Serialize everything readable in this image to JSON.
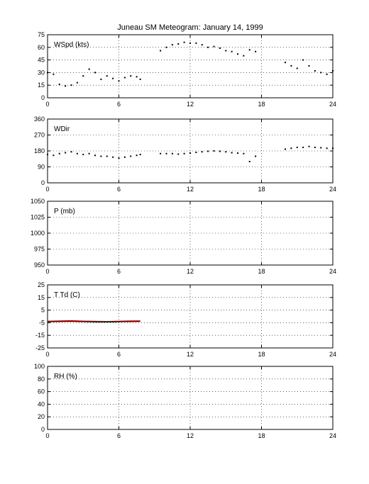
{
  "title": "Juneau SM Meteogram:   January 14, 1999",
  "chart_data": [
    {
      "type": "scatter",
      "label": "WSpd (kts)",
      "xlim": [
        0,
        24
      ],
      "ylim": [
        0,
        75
      ],
      "xticks": [
        0,
        6,
        12,
        18,
        24
      ],
      "yticks": [
        0,
        15,
        30,
        45,
        60,
        75
      ],
      "grid": true,
      "series": [
        {
          "color": "#000000",
          "x": [
            0.0,
            0.5,
            1.0,
            1.5,
            2.0,
            2.5,
            3.0,
            3.5,
            4.0,
            4.5,
            5.0,
            5.5,
            6.0,
            6.5,
            7.0,
            7.5,
            7.8,
            9.5,
            10.0,
            10.5,
            11.0,
            11.5,
            12.0,
            12.5,
            13.0,
            13.5,
            14.0,
            14.5,
            15.0,
            15.5,
            16.0,
            16.5,
            17.0,
            17.5,
            20.0,
            20.5,
            21.0,
            21.5,
            22.0,
            22.5,
            23.0,
            23.5,
            24.0
          ],
          "y": [
            30,
            28,
            16,
            14,
            15,
            18,
            26,
            34,
            30,
            22,
            26,
            23,
            20,
            24,
            26,
            25,
            22,
            56,
            60,
            63,
            64,
            66,
            65,
            65,
            63,
            60,
            61,
            59,
            56,
            55,
            52,
            50,
            57,
            55,
            42,
            38,
            35,
            45,
            38,
            32,
            30,
            28,
            32
          ]
        }
      ]
    },
    {
      "type": "scatter",
      "label": "WDir",
      "xlim": [
        0,
        24
      ],
      "ylim": [
        0,
        360
      ],
      "xticks": [
        0,
        6,
        12,
        18,
        24
      ],
      "yticks": [
        0,
        90,
        180,
        270,
        360
      ],
      "grid": true,
      "series": [
        {
          "color": "#000000",
          "x": [
            0.0,
            0.5,
            1.0,
            1.5,
            2.0,
            2.5,
            3.0,
            3.5,
            4.0,
            4.5,
            5.0,
            5.5,
            6.0,
            6.5,
            7.0,
            7.5,
            7.8,
            9.5,
            10.0,
            10.5,
            11.0,
            11.5,
            12.0,
            12.5,
            13.0,
            13.5,
            14.0,
            14.5,
            15.0,
            15.5,
            16.0,
            16.5,
            17.0,
            17.5,
            20.0,
            20.5,
            21.0,
            21.5,
            22.0,
            22.5,
            23.0,
            23.5,
            24.0
          ],
          "y": [
            160,
            155,
            165,
            170,
            175,
            165,
            160,
            165,
            155,
            150,
            150,
            145,
            140,
            145,
            150,
            155,
            160,
            165,
            165,
            165,
            162,
            165,
            168,
            172,
            175,
            178,
            180,
            178,
            175,
            170,
            168,
            165,
            120,
            150,
            190,
            195,
            200,
            200,
            205,
            200,
            198,
            195,
            195
          ]
        }
      ]
    },
    {
      "type": "scatter",
      "label": "P (mb)",
      "xlim": [
        0,
        24
      ],
      "ylim": [
        950,
        1050
      ],
      "xticks": [
        0,
        6,
        12,
        18,
        24
      ],
      "yticks": [
        950,
        975,
        1000,
        1025,
        1050
      ],
      "grid": true,
      "series": []
    },
    {
      "type": "line",
      "label": "T Td (C)",
      "xlim": [
        0,
        24
      ],
      "ylim": [
        -25,
        25
      ],
      "xticks": [
        0,
        6,
        12,
        18,
        24
      ],
      "yticks": [
        -25,
        -15,
        -5,
        5,
        15,
        25
      ],
      "grid": true,
      "series": [
        {
          "color": "#cc0000",
          "x": [
            0.0,
            1.0,
            2.0,
            3.0,
            4.0,
            5.0,
            6.0,
            7.0,
            7.8
          ],
          "y": [
            -4,
            -3.8,
            -3.6,
            -3.9,
            -4.1,
            -4.2,
            -4.0,
            -3.8,
            -3.7
          ]
        },
        {
          "color": "#000000",
          "x": [
            0.0,
            1.0,
            2.0,
            3.0,
            4.0,
            5.0,
            6.0,
            7.0,
            7.8
          ],
          "y": [
            -4.3,
            -4.1,
            -3.9,
            -4.2,
            -4.4,
            -4.5,
            -4.3,
            -4.1,
            -4.0
          ]
        }
      ]
    },
    {
      "type": "scatter",
      "label": "RH (%)",
      "xlim": [
        0,
        24
      ],
      "ylim": [
        0,
        100
      ],
      "xticks": [
        0,
        6,
        12,
        18,
        24
      ],
      "yticks": [
        0,
        20,
        40,
        60,
        80,
        100
      ],
      "grid": true,
      "series": []
    }
  ]
}
